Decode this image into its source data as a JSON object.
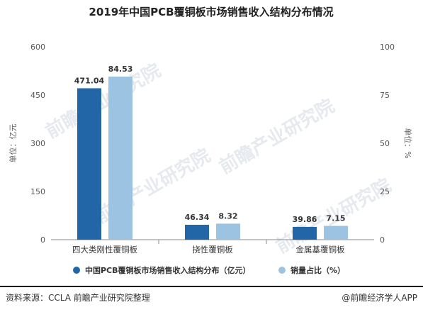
{
  "chart_data": {
    "type": "bar",
    "title": "2019年中国PCB覆铜板市场销售收入结构分布情况",
    "categories": [
      "四大类刚性覆铜板",
      "挠性覆铜板",
      "金属基覆铜板"
    ],
    "series": [
      {
        "name": "中国PCB覆铜板市场销售收入结构分布（亿元）",
        "values": [
          471.04,
          46.34,
          39.86
        ],
        "axis": "left",
        "color": "#2266a8"
      },
      {
        "name": "销量占比（%）",
        "values": [
          84.53,
          8.32,
          7.15
        ],
        "axis": "right",
        "color": "#9dc3e2"
      }
    ],
    "value_labels": [
      [
        "471.04",
        "46.34",
        "39.86"
      ],
      [
        "84.53",
        "8.32",
        "7.15"
      ]
    ],
    "y_left": {
      "label": "单位：亿元",
      "ylim": [
        0,
        600
      ],
      "ticks": [
        "0",
        "150",
        "300",
        "450",
        "600"
      ]
    },
    "y_right": {
      "label": "单位：%",
      "ylim": [
        0,
        100
      ],
      "ticks": [
        "0",
        "25",
        "50",
        "75",
        "100"
      ]
    },
    "legend": "bottom",
    "grid": false
  },
  "footer": {
    "source": "资料来源：CCLA 前瞻产业研究院整理",
    "brand": "@前瞻经济学人APP"
  },
  "watermark": "前瞻产业研究院"
}
